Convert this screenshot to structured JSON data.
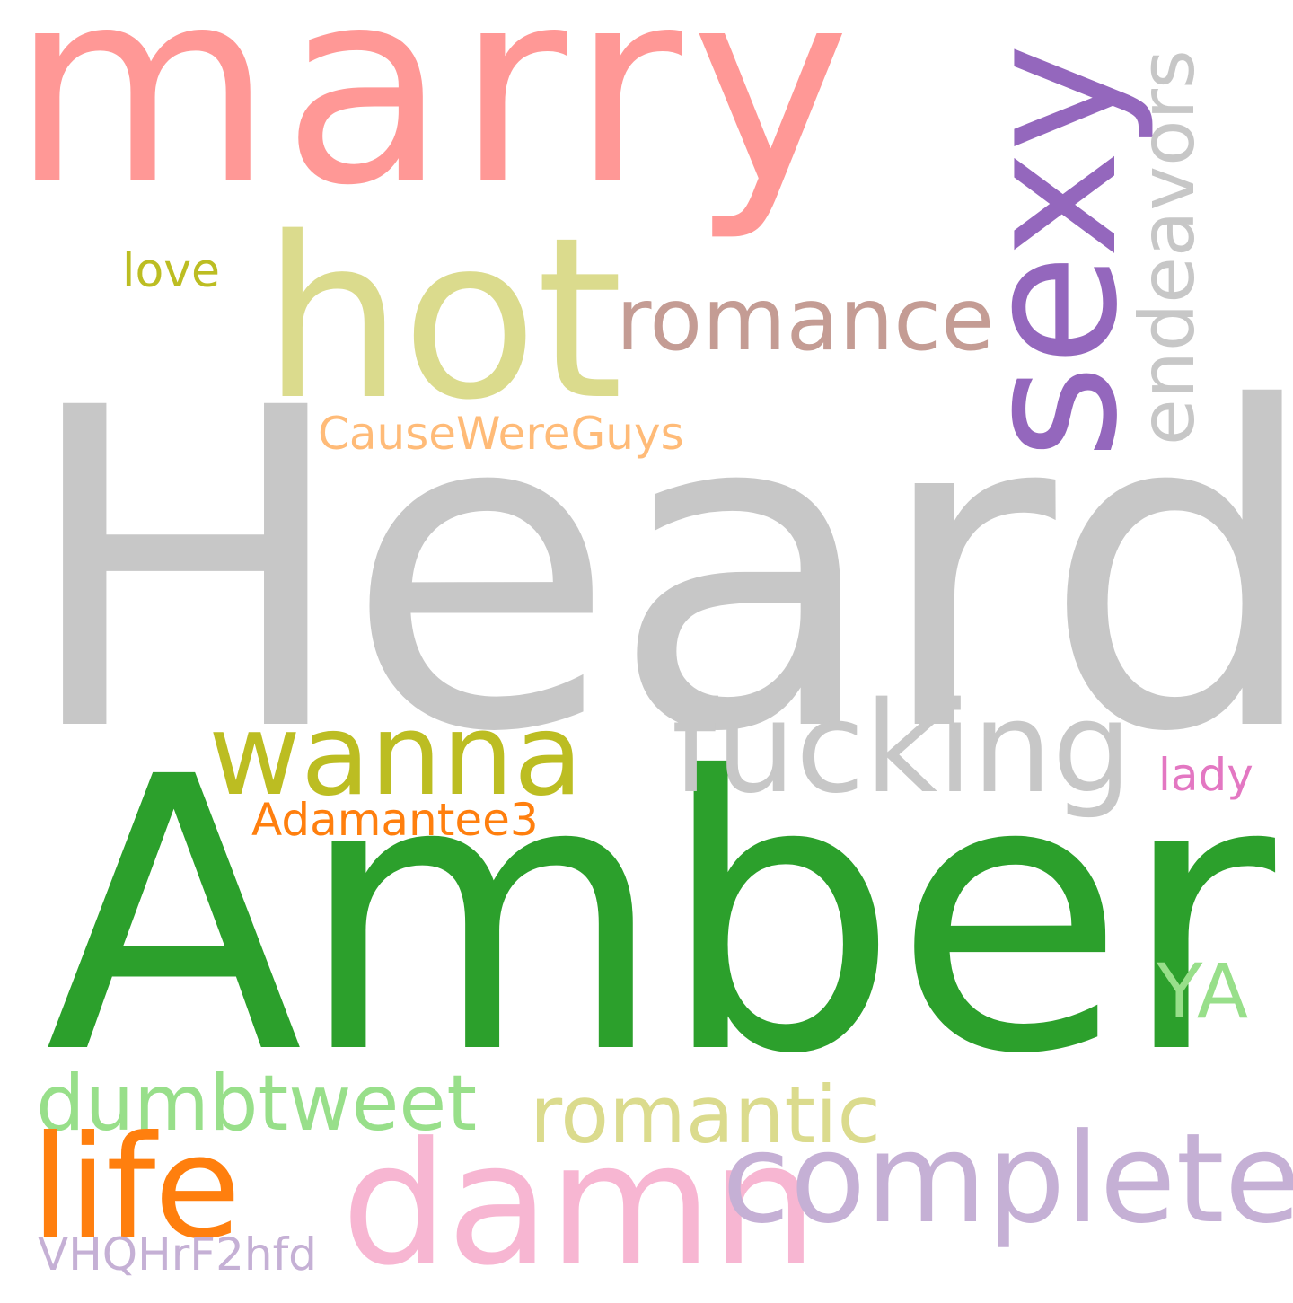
{
  "words": [
    {
      "text": "Heard",
      "color": "#c7c7c7"
    },
    {
      "text": "Amber",
      "color": "#2ca02c"
    },
    {
      "text": "marry",
      "color": "#ff9896"
    },
    {
      "text": "hot",
      "color": "#dbdb8d"
    },
    {
      "text": "sexy",
      "color": "#9467bd"
    },
    {
      "text": "endeavors",
      "color": "#c7c7c7"
    },
    {
      "text": "romance",
      "color": "#c49c94"
    },
    {
      "text": "love",
      "color": "#bcbd22"
    },
    {
      "text": "CauseWereGuys",
      "color": "#ffbb78"
    },
    {
      "text": "fucking",
      "color": "#c7c7c7"
    },
    {
      "text": "wanna",
      "color": "#bcbd22"
    },
    {
      "text": "lady",
      "color": "#e377c2"
    },
    {
      "text": "Adamantee3",
      "color": "#ff7f0e"
    },
    {
      "text": "YA",
      "color": "#98df8a"
    },
    {
      "text": "dumbtweet",
      "color": "#98df8a"
    },
    {
      "text": "romantic",
      "color": "#dbdb8d"
    },
    {
      "text": "life",
      "color": "#ff7f0e"
    },
    {
      "text": "damn",
      "color": "#f7b6d2"
    },
    {
      "text": "complete",
      "color": "#c5b0d5"
    },
    {
      "text": "VHQHrF2hfd",
      "color": "#c5b0d5"
    }
  ]
}
